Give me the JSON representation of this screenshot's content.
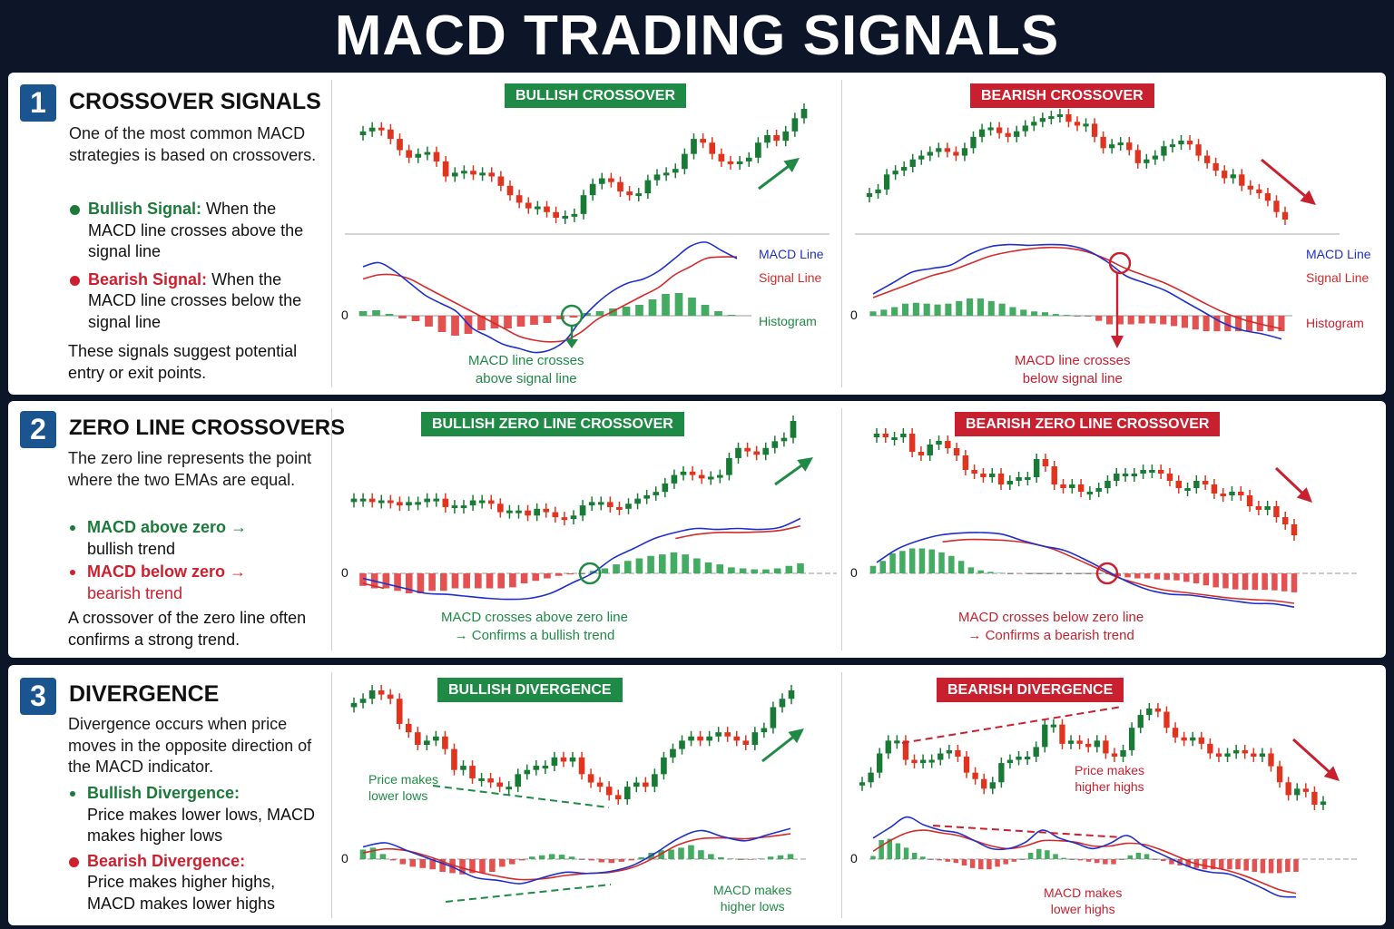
{
  "header": {
    "title": "MACD TRADING SIGNALS"
  },
  "colors": {
    "background": "#0d1628",
    "bull": "#1f8a45",
    "bear": "#c8202f",
    "candle_up": "#187a35",
    "candle_down": "#e0341f",
    "macd_line": "#1f2fc9",
    "signal_line": "#d42a2a",
    "hist_pos": "#3aa85a",
    "hist_neg": "#e24848",
    "section_number": "#1a5590"
  },
  "sections": [
    {
      "number": "1",
      "title": "CROSSOVER SIGNALS",
      "description": "One of the most common MACD strategies is based on crossovers.",
      "bullets": [
        {
          "label": "Bullish Signal:",
          "text": "When the MACD line crosses above the signal line",
          "tone": "bull"
        },
        {
          "label": "Bearish Signal:",
          "text": "When the MACD line crosses below the signal line",
          "tone": "bear"
        }
      ],
      "footer": "These signals suggest potential entry or exit points."
    },
    {
      "number": "2",
      "title": "ZERO LINE CROSSOVERS",
      "description": "The zero line represents the point where the two EMAs are equal.",
      "bullets": [
        {
          "label": "MACD above zero →",
          "text": "bullish trend",
          "tone": "bull"
        },
        {
          "label": "MACD below zero →",
          "text": "bearish trend",
          "tone": "bear"
        }
      ],
      "footer": "A crossover of the zero line often confirms a strong trend."
    },
    {
      "number": "3",
      "title": "DIVERGENCE",
      "description": "Divergence occurs when price moves in the opposite direction of the MACD indicator.",
      "bullets": [
        {
          "label": "Bullish Divergence:",
          "text": "Price makes lower lows, MACD makes higher lows",
          "tone": "bull"
        },
        {
          "label": "Bearish Divergence:",
          "text": "Price makes higher highs, MACD makes lower highs",
          "tone": "bear"
        }
      ],
      "footer": ""
    }
  ],
  "panels": [
    {
      "id": "bullish-crossover",
      "badge": "BULLISH CROSSOVER",
      "tone": "bull",
      "zero_label": "0",
      "legend": {
        "macd": "MACD Line",
        "signal": "Signal Line",
        "histogram": "Histogram"
      },
      "caption": [
        "MACD line crosses",
        "above signal line"
      ]
    },
    {
      "id": "bearish-crossover",
      "badge": "BEARISH CROSSOVER",
      "tone": "bear",
      "zero_label": "0",
      "legend": {
        "macd": "MACD Line",
        "signal": "Signal Line",
        "histogram": "Histogram"
      },
      "caption": [
        "MACD line crosses",
        "below signal line"
      ]
    },
    {
      "id": "bullish-zero-line-crossover",
      "badge": "BULLISH ZERO LINE CROSSOVER",
      "tone": "bull",
      "zero_label": "0",
      "caption": [
        "MACD crosses above zero line",
        "→ Confirms a bullish trend"
      ]
    },
    {
      "id": "bearish-zero-line-crossover",
      "badge": "BEARISH ZERO LINE CROSSOVER",
      "tone": "bear",
      "zero_label": "0",
      "caption": [
        "MACD crosses below zero line",
        "→ Confirms a bearish trend"
      ]
    },
    {
      "id": "bullish-divergence",
      "badge": "BULLISH DIVERGENCE",
      "tone": "bull",
      "zero_label": "0",
      "price_note": [
        "Price makes",
        "lower lows"
      ],
      "macd_note": [
        "MACD makes",
        "higher lows"
      ]
    },
    {
      "id": "bearish-divergence",
      "badge": "BEARISH DIVERGENCE",
      "tone": "bear",
      "zero_label": "0",
      "price_note": [
        "Price makes",
        "higher highs"
      ],
      "macd_note": [
        "MACD makes",
        "lower highs"
      ]
    }
  ],
  "chart_data": [
    {
      "type": "candlestick+macd",
      "title": "BULLISH CROSSOVER",
      "price_close": [
        72,
        74,
        73,
        68,
        62,
        58,
        60,
        61,
        56,
        48,
        50,
        51,
        49,
        50,
        48,
        43,
        38,
        34,
        31,
        32,
        29,
        26,
        27,
        28,
        38,
        44,
        47,
        45,
        40,
        38,
        39,
        46,
        49,
        50,
        52,
        60,
        68,
        66,
        60,
        56,
        55,
        56,
        58,
        66,
        70,
        67,
        72,
        79,
        84
      ],
      "macd": [
        0.6,
        0.65,
        0.55,
        0.4,
        0.25,
        0.15,
        0.05,
        -0.15,
        -0.25,
        -0.35,
        -0.4,
        -0.45,
        -0.42,
        -0.3,
        -0.05,
        0.15,
        0.3,
        0.4,
        0.45,
        0.55,
        0.7,
        0.85,
        0.9,
        0.8,
        0.7
      ],
      "signal": [
        0.45,
        0.5,
        0.5,
        0.45,
        0.35,
        0.25,
        0.15,
        0.05,
        -0.05,
        -0.15,
        -0.25,
        -0.3,
        -0.32,
        -0.3,
        -0.2,
        -0.05,
        0.05,
        0.15,
        0.25,
        0.35,
        0.5,
        0.6,
        0.7,
        0.72,
        0.72
      ],
      "histogram": [
        0.05,
        0.06,
        0.02,
        -0.03,
        -0.06,
        -0.12,
        -0.18,
        -0.22,
        -0.2,
        -0.16,
        -0.14,
        -0.14,
        -0.12,
        -0.1,
        -0.08,
        -0.04,
        -0.02,
        0.03,
        0.05,
        0.08,
        0.1,
        0.12,
        0.18,
        0.24,
        0.25,
        0.2,
        0.12,
        0.05,
        0.01
      ],
      "annotation": "crossover circle at MACD/Signal intersection near zero, arrow down to caption"
    },
    {
      "type": "candlestick+macd",
      "title": "BEARISH CROSSOVER",
      "price_close": [
        40,
        42,
        50,
        52,
        54,
        58,
        60,
        62,
        64,
        62,
        60,
        64,
        70,
        74,
        75,
        72,
        70,
        73,
        76,
        78,
        80,
        81,
        82,
        78,
        76,
        77,
        70,
        64,
        66,
        67,
        63,
        56,
        58,
        60,
        65,
        66,
        68,
        66,
        60,
        56,
        52,
        48,
        50,
        44,
        42,
        40,
        36,
        30,
        26
      ],
      "macd": [
        0.3,
        0.45,
        0.6,
        0.65,
        0.7,
        0.85,
        0.95,
        0.98,
        0.97,
        0.98,
        0.97,
        0.9,
        0.75,
        0.55,
        0.45,
        0.35,
        0.2,
        0.05,
        -0.1,
        -0.2,
        -0.25,
        -0.32
      ],
      "signal": [
        0.25,
        0.35,
        0.45,
        0.55,
        0.62,
        0.72,
        0.82,
        0.88,
        0.92,
        0.94,
        0.93,
        0.88,
        0.78,
        0.65,
        0.55,
        0.45,
        0.32,
        0.18,
        0.05,
        -0.05,
        -0.12,
        -0.18
      ],
      "histogram": [
        0.05,
        0.07,
        0.1,
        0.14,
        0.15,
        0.14,
        0.13,
        0.14,
        0.17,
        0.2,
        0.2,
        0.17,
        0.14,
        0.1,
        0.07,
        0.05,
        0.04,
        0.02,
        0.01,
        0.005,
        0,
        -0.06,
        -0.1,
        -0.1,
        -0.1,
        -0.09,
        -0.09,
        -0.1,
        -0.12,
        -0.14,
        -0.16,
        -0.18,
        -0.18,
        -0.18,
        -0.18,
        -0.18,
        -0.18,
        -0.18,
        -0.18
      ],
      "annotation": "crossover circle where MACD drops below Signal, arrow down to caption"
    },
    {
      "type": "candlestick+macd",
      "title": "BULLISH ZERO LINE CROSSOVER",
      "price_close": [
        52,
        52,
        50,
        51,
        50,
        48,
        50,
        50,
        52,
        52,
        47,
        48,
        48,
        51,
        51,
        49,
        44,
        45,
        45,
        42,
        46,
        44,
        41,
        40,
        42,
        48,
        50,
        50,
        47,
        46,
        49,
        52,
        54,
        56,
        61,
        66,
        68,
        66,
        64,
        65,
        66,
        76,
        82,
        80,
        78,
        82,
        86,
        88,
        98
      ],
      "macd": [
        -0.1,
        -0.2,
        -0.3,
        -0.4,
        -0.42,
        -0.46,
        -0.5,
        -0.52,
        -0.5,
        -0.4,
        -0.2,
        0,
        0.3,
        0.5,
        0.7,
        0.82,
        0.9,
        0.88,
        0.9,
        0.88,
        0.92,
        1.1
      ],
      "signal": [
        -0.2,
        -0.3,
        null,
        null,
        null,
        null,
        null,
        null,
        null,
        null,
        null,
        null,
        null,
        null,
        null,
        0.7,
        0.78,
        0.82,
        0.82,
        0.83,
        0.86,
        0.95
      ],
      "histogram": [
        -0.25,
        -0.3,
        -0.3,
        -0.35,
        -0.4,
        -0.4,
        -0.35,
        -0.35,
        -0.3,
        -0.3,
        -0.3,
        -0.3,
        -0.3,
        -0.28,
        -0.2,
        -0.15,
        -0.1,
        -0.05,
        -0.02,
        0,
        0.05,
        0.1,
        0.18,
        0.25,
        0.3,
        0.35,
        0.38,
        0.42,
        0.38,
        0.3,
        0.22,
        0.18,
        0.12,
        0.1,
        0.08,
        0.08,
        0.1,
        0.15,
        0.2
      ]
    },
    {
      "type": "candlestick+macd",
      "title": "BEARISH ZERO LINE CROSSOVER",
      "price_close": [
        88,
        86,
        86,
        88,
        78,
        76,
        82,
        84,
        80,
        76,
        68,
        66,
        64,
        66,
        60,
        62,
        64,
        64,
        74,
        70,
        60,
        58,
        60,
        56,
        56,
        58,
        62,
        66,
        66,
        66,
        68,
        68,
        66,
        62,
        58,
        58,
        62,
        60,
        55,
        54,
        56,
        54,
        48,
        46,
        48,
        42,
        38,
        32
      ],
      "macd": [
        0.2,
        0.45,
        0.6,
        0.7,
        0.74,
        0.75,
        0.72,
        0.6,
        0.5,
        0.42,
        0.25,
        0.05,
        -0.15,
        -0.3,
        -0.38,
        -0.4,
        -0.45,
        -0.5,
        -0.55,
        -0.56,
        -0.62
      ],
      "signal": [
        null,
        null,
        null,
        0.58,
        0.62,
        0.62,
        0.6,
        0.55,
        0.45,
        0.28,
        0.1,
        -0.08,
        -0.2,
        -0.3,
        -0.35,
        -0.4,
        -0.45,
        -0.48,
        -0.5,
        -0.55
      ],
      "histogram": [
        0.15,
        0.25,
        0.4,
        0.45,
        0.5,
        0.5,
        0.48,
        0.42,
        0.35,
        0.25,
        0.12,
        0.06,
        0.03,
        0.01,
        0,
        -0.01,
        0,
        0,
        0,
        0,
        0,
        0,
        0,
        0,
        0,
        -0.06,
        -0.08,
        -0.1,
        -0.1,
        -0.12,
        -0.13,
        -0.14,
        -0.17,
        -0.2,
        -0.24,
        -0.28,
        -0.3,
        -0.32,
        -0.33,
        -0.33,
        -0.33,
        -0.34,
        -0.36,
        -0.38
      ]
    },
    {
      "type": "candlestick+macd",
      "title": "BULLISH DIVERGENCE",
      "price_close": [
        80,
        82,
        86,
        84,
        82,
        70,
        66,
        60,
        62,
        64,
        58,
        48,
        50,
        44,
        44,
        42,
        40,
        40,
        46,
        48,
        50,
        50,
        54,
        52,
        54,
        46,
        42,
        40,
        36,
        34,
        40,
        42,
        40,
        46,
        54,
        58,
        62,
        64,
        62,
        64,
        66,
        64,
        62,
        60,
        66,
        68,
        78,
        82,
        86
      ],
      "macd": [
        0.3,
        0.4,
        0.2,
        0.0,
        -0.2,
        -0.45,
        -0.52,
        -0.6,
        -0.45,
        -0.32,
        -0.35,
        -0.3,
        -0.15,
        0.15,
        0.5,
        0.7,
        0.55,
        0.45,
        0.6,
        0.75
      ],
      "signal": [
        0.15,
        0.25,
        0.2,
        0.05,
        -0.15,
        -0.3,
        -0.42,
        -0.5,
        -0.48,
        -0.4,
        -0.35,
        -0.32,
        -0.2,
        0.05,
        0.35,
        0.5,
        0.52,
        0.5,
        0.55,
        0.62
      ],
      "histogram": [
        0.15,
        0.18,
        0.08,
        -0.02,
        -0.08,
        -0.12,
        -0.14,
        -0.16,
        -0.2,
        -0.22,
        -0.24,
        -0.22,
        -0.22,
        -0.2,
        -0.12,
        -0.08,
        -0.02,
        0.04,
        0.06,
        0.08,
        0.07,
        0.04,
        0,
        -0.02,
        -0.05,
        -0.06,
        -0.04,
        -0.02,
        0.03,
        0.1,
        0.14,
        0.15,
        0.18,
        0.22,
        0.14,
        0.08,
        0.03,
        0.01,
        0,
        -0.01,
        0.01,
        0.04,
        0.06,
        0.08
      ]
    },
    {
      "type": "candlestick+macd",
      "title": "BEARISH DIVERGENCE",
      "price_close": [
        44,
        50,
        62,
        70,
        70,
        58,
        56,
        58,
        58,
        62,
        64,
        60,
        50,
        46,
        40,
        44,
        56,
        58,
        60,
        60,
        66,
        80,
        80,
        68,
        70,
        68,
        66,
        70,
        62,
        60,
        64,
        78,
        86,
        90,
        88,
        78,
        72,
        70,
        72,
        68,
        62,
        60,
        62,
        64,
        62,
        60,
        62,
        54,
        44,
        36,
        40,
        38,
        30,
        32
      ],
      "macd": [
        0.4,
        0.6,
        0.8,
        0.65,
        0.55,
        0.5,
        0.35,
        0.2,
        0.2,
        0.32,
        0.55,
        0.4,
        0.3,
        0.2,
        0.3,
        0.45,
        0.25,
        0.1,
        -0.05,
        -0.18,
        -0.25,
        -0.28,
        -0.4,
        -0.55,
        -0.7,
        -0.72
      ],
      "signal": [
        0.15,
        0.35,
        0.5,
        0.55,
        0.5,
        0.45,
        0.35,
        0.25,
        0.2,
        0.25,
        0.35,
        0.35,
        0.32,
        0.25,
        0.25,
        0.3,
        0.28,
        0.18,
        0.05,
        -0.08,
        -0.15,
        -0.22,
        -0.32,
        -0.45,
        -0.58,
        -0.65
      ],
      "histogram": [
        0.05,
        0.3,
        0.32,
        0.25,
        0.18,
        0.1,
        0.04,
        0,
        -0.02,
        -0.04,
        -0.06,
        -0.1,
        -0.14,
        -0.16,
        -0.16,
        -0.12,
        -0.08,
        -0.04,
        0,
        0.1,
        0.16,
        0.14,
        0.08,
        0.02,
        0,
        -0.02,
        -0.04,
        -0.06,
        -0.08,
        -0.08,
        0,
        0.06,
        0.1,
        0.08,
        0,
        -0.03,
        -0.08,
        -0.1,
        -0.12,
        -0.14,
        -0.16,
        -0.16,
        -0.16,
        -0.16,
        -0.16,
        -0.18,
        -0.2,
        -0.22,
        -0.22,
        -0.22,
        -0.2,
        -0.2
      ]
    }
  ]
}
